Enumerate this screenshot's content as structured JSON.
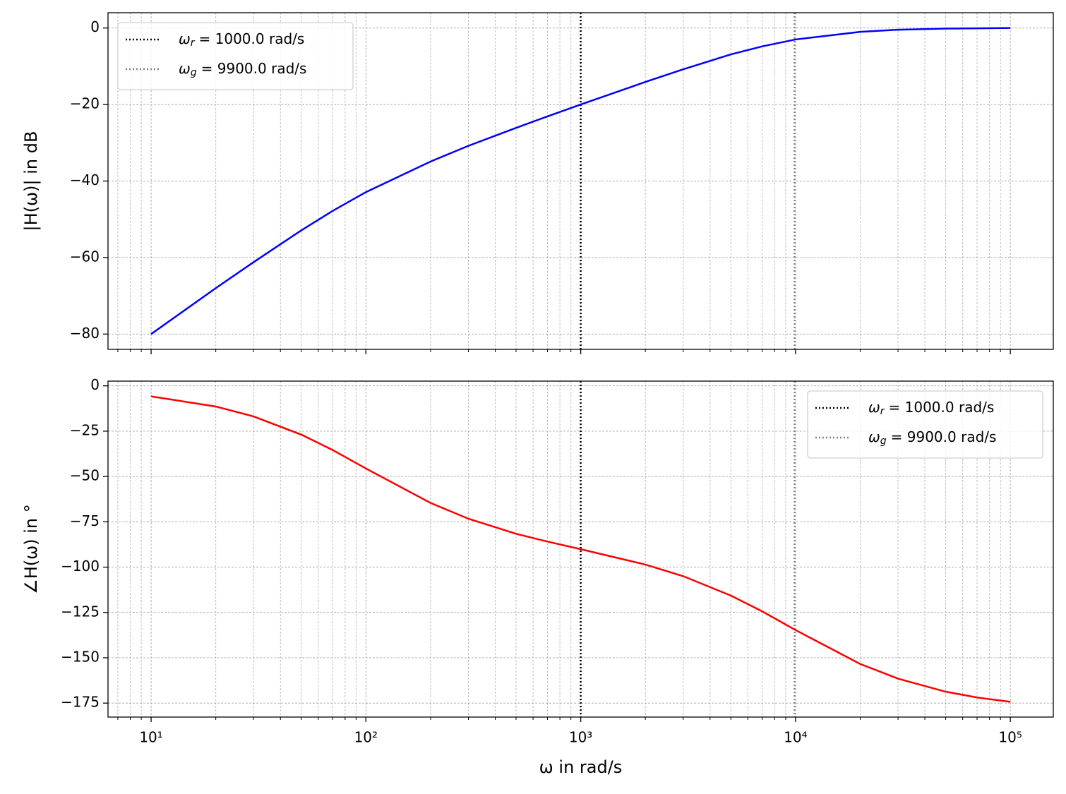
{
  "chart_data": [
    {
      "type": "line",
      "ylabel": "|H(ω)| in dB",
      "log_x": true,
      "grid": true,
      "legend": "upper left",
      "x": [
        10,
        20,
        30,
        50,
        70,
        100,
        200,
        300,
        500,
        700,
        1000,
        2000,
        3000,
        5000,
        7000,
        10000,
        20000,
        30000,
        50000,
        70000,
        100000
      ],
      "series": [
        {
          "color": "#0000ff",
          "values": [
            -80.0,
            -68.0,
            -61.2,
            -52.9,
            -47.8,
            -42.9,
            -34.9,
            -30.8,
            -26.1,
            -23.1,
            -20.0,
            -14.1,
            -10.8,
            -6.9,
            -4.8,
            -3.0,
            -1.0,
            -0.45,
            -0.16,
            -0.08,
            0.0
          ]
        }
      ],
      "vlines": [
        {
          "x": 1000,
          "color": "#000000",
          "label": {
            "symbol": "ω",
            "sub": "r",
            "text": "= 1000.0 rad/s"
          }
        },
        {
          "x": 9900,
          "color": "#808080",
          "label": {
            "symbol": "ω",
            "sub": "g",
            "text": "= 9900.0 rad/s"
          }
        }
      ],
      "xlim": [
        6.3,
        158489
      ],
      "xticks": [
        10,
        100,
        1000,
        10000,
        100000
      ],
      "xminorticks": [
        7,
        8,
        9,
        20,
        30,
        40,
        50,
        60,
        70,
        80,
        90,
        200,
        300,
        400,
        500,
        600,
        700,
        800,
        900,
        2000,
        3000,
        4000,
        5000,
        6000,
        7000,
        8000,
        9000,
        20000,
        30000,
        40000,
        50000,
        60000,
        70000,
        80000,
        90000
      ],
      "ylim": [
        -84,
        4
      ],
      "yticks": [
        0,
        {
          "value": -20,
          "label": "−20"
        },
        {
          "value": -40,
          "label": "−40"
        },
        {
          "value": -60,
          "label": "−60"
        },
        {
          "value": -80,
          "label": "−80"
        }
      ]
    },
    {
      "type": "line",
      "ylabel": "∠H(ω) in °",
      "xlabel": "ω in rad/s",
      "log_x": true,
      "grid": true,
      "legend": "upper right",
      "x": [
        10,
        20,
        30,
        50,
        70,
        100,
        200,
        300,
        500,
        700,
        1000,
        2000,
        3000,
        5000,
        7000,
        10000,
        20000,
        30000,
        50000,
        70000,
        100000
      ],
      "series": [
        {
          "color": "#ff0000",
          "values": [
            -5.8,
            -11.4,
            -16.9,
            -26.9,
            -35.4,
            -45.6,
            -64.6,
            -73.3,
            -81.6,
            -85.9,
            -90.1,
            -98.6,
            -105.0,
            -115.7,
            -124.4,
            -134.7,
            -153.4,
            -161.5,
            -168.7,
            -171.9,
            -174.3
          ]
        }
      ],
      "vlines": [
        {
          "x": 1000,
          "color": "#000000",
          "label": {
            "symbol": "ω",
            "sub": "r",
            "text": "= 1000.0 rad/s"
          }
        },
        {
          "x": 9900,
          "color": "#808080",
          "label": {
            "symbol": "ω",
            "sub": "g",
            "text": "= 9900.0 rad/s"
          }
        }
      ],
      "xlim": [
        6.3,
        158489
      ],
      "xticks": [
        {
          "value": 10,
          "label": "10¹"
        },
        {
          "value": 100,
          "label": "10²"
        },
        {
          "value": 1000,
          "label": "10³"
        },
        {
          "value": 10000,
          "label": "10⁴"
        },
        {
          "value": 100000,
          "label": "10⁵"
        }
      ],
      "xminorticks": [
        7,
        8,
        9,
        20,
        30,
        40,
        50,
        60,
        70,
        80,
        90,
        200,
        300,
        400,
        500,
        600,
        700,
        800,
        900,
        2000,
        3000,
        4000,
        5000,
        6000,
        7000,
        8000,
        9000,
        20000,
        30000,
        40000,
        50000,
        60000,
        70000,
        80000,
        90000
      ],
      "ylim": [
        -182.7,
        2.6
      ],
      "yticks": [
        0,
        {
          "value": -25,
          "label": "−25"
        },
        {
          "value": -50,
          "label": "−50"
        },
        {
          "value": -75,
          "label": "−75"
        },
        {
          "value": -100,
          "label": "−100"
        },
        {
          "value": -125,
          "label": "−125"
        },
        {
          "value": -150,
          "label": "−150"
        },
        {
          "value": -175,
          "label": "−175"
        }
      ]
    }
  ]
}
